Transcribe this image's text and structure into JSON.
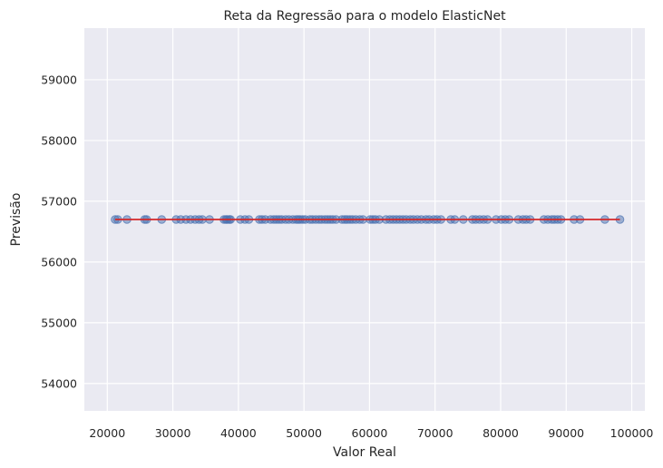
{
  "chart_data": {
    "type": "scatter",
    "title": "Reta da Regressão para o modelo ElasticNet",
    "xlabel": "Valor Real",
    "ylabel": "Previsão",
    "xlim": [
      16500,
      102000
    ],
    "ylim": [
      53550,
      59850
    ],
    "x_ticks": [
      20000,
      30000,
      40000,
      50000,
      60000,
      70000,
      80000,
      90000,
      100000
    ],
    "y_ticks": [
      54000,
      55000,
      56000,
      57000,
      58000,
      59000
    ],
    "grid": true,
    "background": "#eaeaf2",
    "grid_color": "#ffffff",
    "point_color": "#4c72b0",
    "line_color": "#d62728",
    "prediction_value": 56700,
    "points_x": [
      21200,
      21600,
      23000,
      25700,
      26000,
      28300,
      30500,
      31200,
      32000,
      32700,
      33400,
      34000,
      34500,
      35600,
      37800,
      38100,
      38300,
      38600,
      38800,
      40300,
      41000,
      41600,
      43200,
      43600,
      44100,
      44900,
      45400,
      45800,
      46200,
      46600,
      47200,
      47700,
      48300,
      48800,
      49100,
      49400,
      49800,
      50200,
      50900,
      51300,
      51800,
      52300,
      52700,
      53200,
      53600,
      54000,
      54400,
      54900,
      55800,
      56200,
      56600,
      57000,
      57400,
      57900,
      58500,
      59000,
      60100,
      60500,
      60900,
      61500,
      62500,
      63100,
      63600,
      64100,
      64600,
      65100,
      65600,
      66200,
      66700,
      67300,
      67900,
      68600,
      69100,
      69800,
      70300,
      70900,
      72400,
      73000,
      74300,
      75700,
      76200,
      76800,
      77400,
      78000,
      79300,
      80100,
      80700,
      81300,
      82700,
      83400,
      83900,
      84500,
      86600,
      87200,
      87800,
      88200,
      88700,
      89200,
      91200,
      92100,
      95900,
      98200
    ]
  }
}
